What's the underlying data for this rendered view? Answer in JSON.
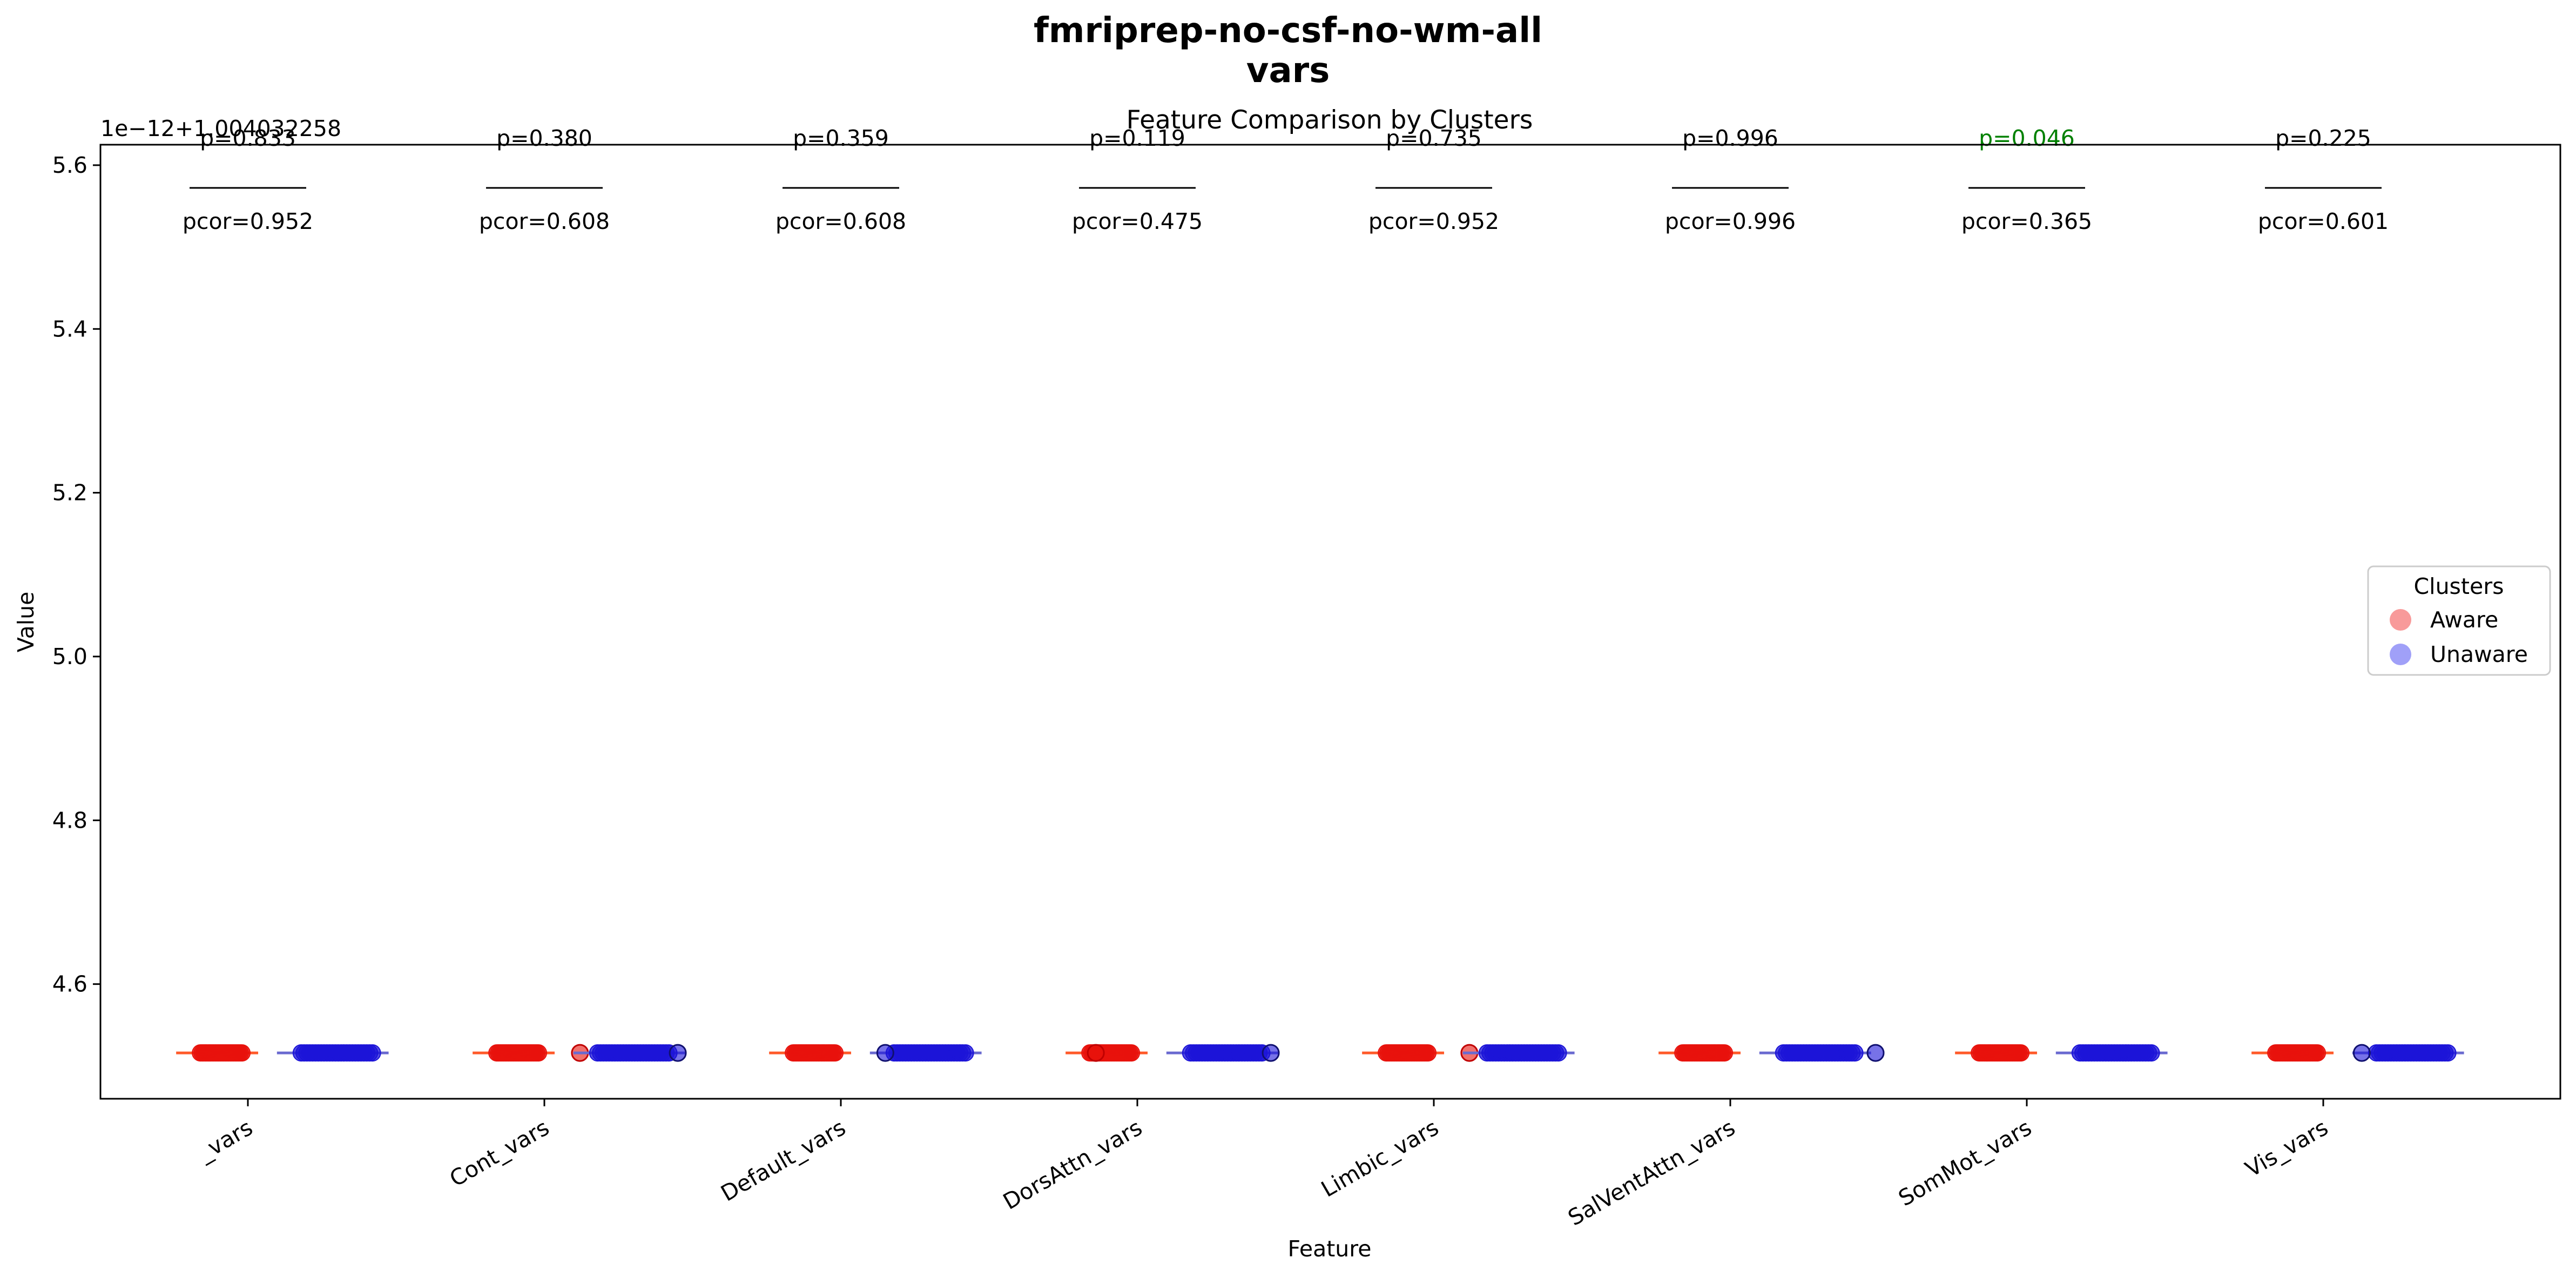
{
  "figure": {
    "suptitle_lines": [
      "fmriprep-no-csf-no-wm-all",
      "vars"
    ]
  },
  "chart_data": {
    "type": "scatter",
    "title": "Feature Comparison by Clusters",
    "xlabel": "Feature",
    "ylabel": "Value",
    "offset_label": "1e−12+1.004032258",
    "ylim": [
      4.46,
      5.625
    ],
    "yticks": [
      4.6,
      4.8,
      5.0,
      5.2,
      5.4,
      5.6
    ],
    "ytick_labels": [
      "4.6",
      "4.8",
      "5.0",
      "5.2",
      "5.4",
      "5.6"
    ],
    "grid": false,
    "legend": {
      "title": "Clusters",
      "placement": "center-right",
      "entries": [
        {
          "label": "Aware",
          "color": "#f89a9a"
        },
        {
          "label": "Unaware",
          "color": "#a0a0f8"
        }
      ]
    },
    "colors": {
      "aware": "#e8120c",
      "unaware": "#1c14d8",
      "significant_p": "#008000",
      "text": "#000000"
    },
    "categories": [
      "_vars",
      "Cont_vars",
      "Default_vars",
      "DorsAttn_vars",
      "Limbic_vars",
      "SalVentAttn_vars",
      "SomMot_vars",
      "Vis_vars"
    ],
    "annotations": [
      {
        "p": "p=0.833",
        "pcor": "pcor=0.952",
        "significant": false
      },
      {
        "p": "p=0.380",
        "pcor": "pcor=0.608",
        "significant": false
      },
      {
        "p": "p=0.359",
        "pcor": "pcor=0.608",
        "significant": false
      },
      {
        "p": "p=0.119",
        "pcor": "pcor=0.475",
        "significant": false
      },
      {
        "p": "p=0.735",
        "pcor": "pcor=0.952",
        "significant": false
      },
      {
        "p": "p=0.996",
        "pcor": "pcor=0.996",
        "significant": false
      },
      {
        "p": "p=0.046",
        "pcor": "pcor=0.365",
        "significant": true
      },
      {
        "p": "p=0.225",
        "pcor": "pcor=0.601",
        "significant": false
      }
    ],
    "series": [
      {
        "name": "Aware",
        "value": 4.516,
        "x_ranges": [
          [
            -0.16,
            -0.02
          ],
          [
            -0.16,
            -0.02
          ],
          [
            -0.16,
            -0.02
          ],
          [
            -0.16,
            -0.02
          ],
          [
            -0.16,
            -0.02
          ],
          [
            -0.16,
            -0.02
          ],
          [
            -0.16,
            -0.02
          ],
          [
            -0.16,
            -0.02
          ]
        ],
        "outliers": [
          [],
          [
            0.12
          ],
          [],
          [
            -0.14
          ],
          [
            0.12
          ],
          [],
          [],
          []
        ]
      },
      {
        "name": "Unaware",
        "value": 4.516,
        "x_ranges": [
          [
            0.18,
            0.42
          ],
          [
            0.18,
            0.42
          ],
          [
            0.18,
            0.42
          ],
          [
            0.18,
            0.42
          ],
          [
            0.18,
            0.42
          ],
          [
            0.18,
            0.42
          ],
          [
            0.18,
            0.42
          ],
          [
            0.18,
            0.42
          ]
        ],
        "outliers": [
          [],
          [
            0.45
          ],
          [
            0.15
          ],
          [
            0.45
          ],
          [],
          [
            0.49
          ],
          [],
          [
            0.13
          ]
        ]
      }
    ]
  }
}
